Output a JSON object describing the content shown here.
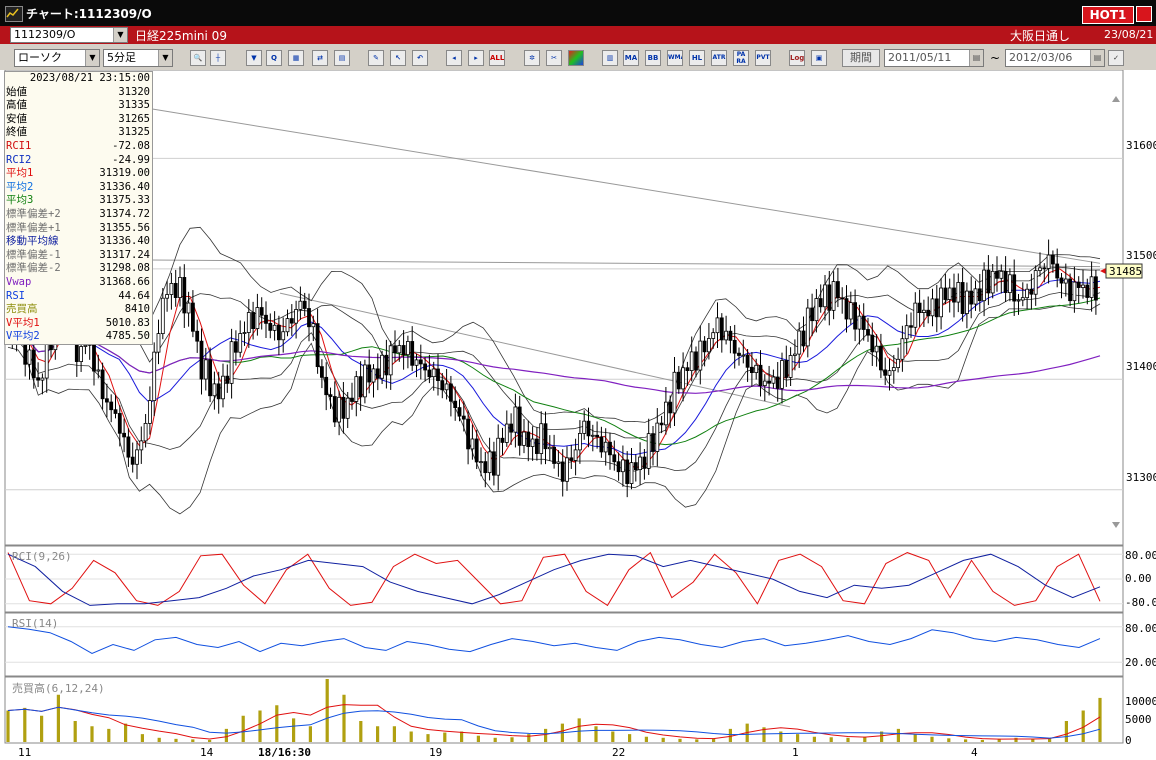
{
  "window": {
    "title": "チャート:1112309/O",
    "hot_badge": "HOT1",
    "icon": "chart-app-icon"
  },
  "infobar": {
    "symbol_code": "1112309/O",
    "symbol_name": "日経225mini 09",
    "market": "大阪日通し",
    "date": "23/08/21"
  },
  "toolbar": {
    "chart_type": "ローソク",
    "interval": "5分足",
    "period_button": "期間",
    "date_from": "2011/05/11",
    "date_to": "2012/03/06",
    "range_sep": "~",
    "indicator_buttons": [
      "MA",
      "BB",
      "WMA",
      "HL",
      "ATR",
      "PA",
      "PVT"
    ],
    "indicator_buttons_sub": [
      "",
      "",
      "",
      "",
      "",
      "RA",
      ""
    ],
    "all_label": "ALL",
    "log_label": "Log"
  },
  "data_panel": {
    "timestamp": "2023/08/21  23:15:00",
    "rows": [
      {
        "label": "始値",
        "value": "31320",
        "color": "#000000"
      },
      {
        "label": "高値",
        "value": "31335",
        "color": "#000000"
      },
      {
        "label": "安値",
        "value": "31265",
        "color": "#000000"
      },
      {
        "label": "終値",
        "value": "31325",
        "color": "#000000"
      },
      {
        "label": "RCI1",
        "value": "-72.08",
        "color": "#d01010"
      },
      {
        "label": "RCI2",
        "value": "-24.99",
        "color": "#1030c0"
      },
      {
        "label": "平均1",
        "value": "31319.00",
        "color": "#e01010"
      },
      {
        "label": "平均2",
        "value": "31336.40",
        "color": "#1070e0"
      },
      {
        "label": "平均3",
        "value": "31375.33",
        "color": "#108010"
      },
      {
        "label": "標準偏差+2",
        "value": "31374.72",
        "color": "#707070"
      },
      {
        "label": "標準偏差+1",
        "value": "31355.56",
        "color": "#707070"
      },
      {
        "label": "移動平均線",
        "value": "31336.40",
        "color": "#1020a0"
      },
      {
        "label": "標準偏差-1",
        "value": "31317.24",
        "color": "#707070"
      },
      {
        "label": "標準偏差-2",
        "value": "31298.08",
        "color": "#707070"
      },
      {
        "label": "Vwap",
        "value": "31368.66",
        "color": "#8020c0"
      },
      {
        "label": "RSI",
        "value": "44.64",
        "color": "#1040e0"
      },
      {
        "label": "売買高",
        "value": "8410",
        "color": "#909010"
      },
      {
        "label": "V平均1",
        "value": "5010.83",
        "color": "#e01010"
      },
      {
        "label": "V平均2",
        "value": "4785.50",
        "color": "#1040e0"
      }
    ]
  },
  "main_chart": {
    "y_ticks": [
      "31600",
      "31500",
      "31400",
      "31300"
    ],
    "last_price": "31485",
    "x_ticks": [
      "11",
      "14",
      "18/16:30",
      "19",
      "22",
      "1",
      "4"
    ]
  },
  "rci_panel": {
    "label": "RCI(9,26)",
    "y_ticks": [
      "80.00",
      "0.00",
      "-80.0"
    ]
  },
  "rsi_panel": {
    "label": "RSI(14)",
    "y_ticks": [
      "80.00",
      "20.00"
    ]
  },
  "volume_panel": {
    "label": "売買高(6,12,24)",
    "y_ticks": [
      "10000",
      "5000",
      "0"
    ]
  },
  "colors": {
    "ma_short": "#e01010",
    "ma_mid": "#1a1adc",
    "ma_long": "#108010",
    "vwap": "#8020c0",
    "bollinger": "#333333",
    "trendline": "#999999",
    "candle_up": "#ffffff",
    "candle_down": "#000000",
    "rci_fast": "#e01010",
    "rci_slow": "#1020a0",
    "rsi": "#1050e0",
    "volume_bar": "#b0a010"
  },
  "chart_data": [
    {
      "type": "candlestick",
      "title": "",
      "ylim": [
        31250,
        31680
      ],
      "y_ticks": [
        31300,
        31400,
        31500,
        31600
      ],
      "last_price": 31485,
      "x_tick_labels": [
        "11",
        "14",
        "18/16:30",
        "19",
        "22",
        "1",
        "4"
      ],
      "note": "approximate price path sampled left to right",
      "close_path": [
        31445,
        31440,
        31420,
        31395,
        31430,
        31470,
        31455,
        31420,
        31440,
        31395,
        31375,
        31360,
        31325,
        31335,
        31380,
        31460,
        31485,
        31480,
        31460,
        31415,
        31395,
        31385,
        31420,
        31440,
        31455,
        31460,
        31445,
        31440,
        31455,
        31470,
        31450,
        31400,
        31375,
        31370,
        31385,
        31400,
        31405,
        31410,
        31425,
        31430,
        31420,
        31410,
        31405,
        31395,
        31380,
        31360,
        31335,
        31320,
        31325,
        31350,
        31365,
        31345,
        31340,
        31350,
        31325,
        31315,
        31335,
        31360,
        31345,
        31340,
        31325,
        31315,
        31320,
        31330,
        31350,
        31370,
        31395,
        31410,
        31420,
        31430,
        31450,
        31440,
        31425,
        31415,
        31405,
        31395,
        31400,
        31410,
        31430,
        31450,
        31470,
        31475,
        31480,
        31460,
        31455,
        31440,
        31420,
        31400,
        31420,
        31450,
        31465,
        31460,
        31470,
        31480,
        31475,
        31470,
        31480,
        31490,
        31495,
        31485,
        31470,
        31480,
        31500,
        31510,
        31490,
        31480,
        31485,
        31480,
        31485
      ]
    },
    {
      "type": "line",
      "title": "RCI(9,26)",
      "ylim": [
        -100,
        100
      ],
      "y_ticks": [
        80,
        0,
        -80
      ],
      "series": [
        {
          "name": "RCI1",
          "values": [
            85,
            -70,
            -80,
            -30,
            60,
            20,
            -70,
            -85,
            -40,
            75,
            80,
            -20,
            -80,
            30,
            80,
            -30,
            -85,
            -75,
            40,
            80,
            50,
            60,
            -10,
            -80,
            -70,
            70,
            80,
            -40,
            -85,
            30,
            85,
            -60,
            -10,
            80,
            20,
            -80,
            60,
            80,
            40,
            -70,
            -80,
            50,
            85,
            60,
            -60,
            60,
            -40,
            -85,
            -70,
            40,
            80,
            -72
          ]
        },
        {
          "name": "RCI2",
          "values": [
            80,
            40,
            -40,
            -85,
            -80,
            -80,
            -70,
            -60,
            -30,
            10,
            30,
            60,
            50,
            40,
            -10,
            -40,
            -60,
            -80,
            -50,
            -10,
            30,
            60,
            80,
            75,
            40,
            60,
            40,
            20,
            0,
            -40,
            -60,
            -20,
            -30,
            -20,
            20,
            60,
            80,
            40,
            -20,
            -60,
            -25
          ]
        }
      ]
    },
    {
      "type": "line",
      "title": "RSI(14)",
      "ylim": [
        0,
        100
      ],
      "y_ticks": [
        80,
        20
      ],
      "series": [
        {
          "name": "RSI",
          "values": [
            80,
            76,
            70,
            55,
            35,
            50,
            40,
            58,
            62,
            50,
            45,
            55,
            38,
            52,
            48,
            55,
            60,
            45,
            40,
            55,
            50,
            42,
            38,
            50,
            60,
            55,
            48,
            52,
            45,
            40,
            55,
            62,
            58,
            50,
            45,
            55,
            60,
            48,
            52,
            58,
            65,
            55,
            50,
            60,
            75,
            70,
            60,
            55,
            62,
            58,
            50,
            45,
            60
          ]
        }
      ]
    },
    {
      "type": "bar",
      "title": "売買高(6,12,24)",
      "ylim": [
        0,
        12000
      ],
      "y_ticks": [
        10000,
        5000,
        0
      ],
      "note": "volume bars, approximate profile sampled left to right",
      "values": [
        6000,
        6500,
        5000,
        9000,
        4000,
        3000,
        2500,
        3500,
        1500,
        800,
        600,
        500,
        400,
        2500,
        5000,
        6000,
        7000,
        4500,
        3000,
        12000,
        9000,
        4000,
        3000,
        3000,
        2000,
        1500,
        1800,
        2000,
        1200,
        800,
        900,
        1500,
        2500,
        3500,
        4500,
        3000,
        2000,
        1500,
        1000,
        800,
        600,
        500,
        700,
        2500,
        3500,
        2800,
        2000,
        1500,
        1000,
        900,
        800,
        1000,
        2000,
        2500,
        1500,
        1000,
        700,
        500,
        400,
        600,
        800,
        500,
        700,
        4000,
        6000,
        8400
      ],
      "series": [
        {
          "name": "V平均1",
          "value": 5010.83
        },
        {
          "name": "V平均2",
          "value": 4785.5
        }
      ]
    }
  ]
}
